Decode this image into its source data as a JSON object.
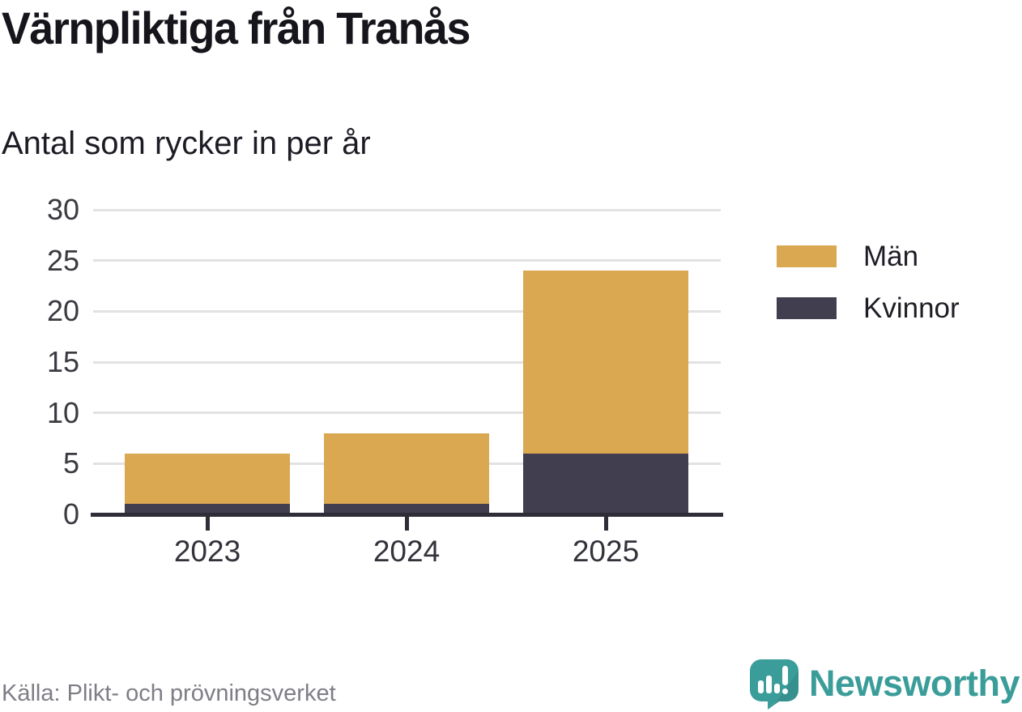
{
  "header": {
    "title": "Värnpliktiga från Tranås",
    "subtitle": "Antal som rycker in per år"
  },
  "chart_data": {
    "type": "bar",
    "stacked": true,
    "title": "Värnpliktiga från Tranås",
    "subtitle": "Antal som rycker in per år",
    "categories": [
      "2023",
      "2024",
      "2025"
    ],
    "series": [
      {
        "name": "Män",
        "color": "#d9a851",
        "values": [
          5,
          7,
          18
        ]
      },
      {
        "name": "Kvinnor",
        "color": "#413e50",
        "values": [
          1,
          1,
          6
        ]
      }
    ],
    "stack_order_bottom_to_top": [
      "Kvinnor",
      "Män"
    ],
    "totals": [
      6,
      8,
      24
    ],
    "xlabel": "",
    "ylabel": "",
    "ylim": [
      0,
      30
    ],
    "yticks": [
      0,
      5,
      10,
      15,
      20,
      25,
      30
    ],
    "grid": "horizontal",
    "legend_position": "right"
  },
  "footer": {
    "source": "Källa: Plikt- och prövningsverket",
    "brand": "Newsworthy"
  },
  "colors": {
    "man": "#d9a851",
    "kvinnor": "#413e50",
    "axis": "#2e2d38",
    "gridline": "#e2e2e3",
    "brand_teal": "#3b9d99",
    "source_gray": "#7e7e86"
  }
}
